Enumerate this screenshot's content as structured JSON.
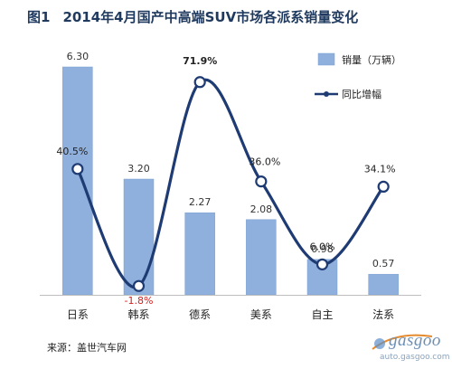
{
  "title": {
    "number": "图1",
    "text": "2014年4月国产中高端SUV市场各派系销量变化"
  },
  "source": "来源：盖世汽车网",
  "watermark": {
    "logo": "gasgoo",
    "url": "auto.gasgoo.com"
  },
  "colors": {
    "bar": "#8fb0dd",
    "bar_edge": "#7a9fd2",
    "line": "#1f3b73",
    "axis": "#bfbfbf"
  },
  "chart_data": {
    "type": "bar",
    "categories": [
      "日系",
      "韩系",
      "德系",
      "美系",
      "自主",
      "法系"
    ],
    "series": [
      {
        "name": "销量（万辆）",
        "type": "bar",
        "values": [
          6.3,
          3.2,
          2.27,
          2.08,
          0.98,
          0.57
        ],
        "labels": [
          "6.30",
          "3.20",
          "2.27",
          "2.08",
          "0.98",
          "0.57"
        ]
      },
      {
        "name": "同比增幅",
        "type": "line",
        "smooth": true,
        "values": [
          40.5,
          -1.8,
          71.9,
          36.0,
          6.0,
          34.1
        ],
        "labels": [
          "40.5%",
          "-1.8%",
          "71.9%",
          "36.0%",
          "6.0%",
          "34.1%"
        ]
      }
    ],
    "title": "2014年4月国产中高端SUV市场各派系销量变化",
    "ylim": [
      0,
      6.5
    ],
    "y2lim": [
      -5,
      80
    ],
    "grid": false,
    "legend": "top-right"
  }
}
